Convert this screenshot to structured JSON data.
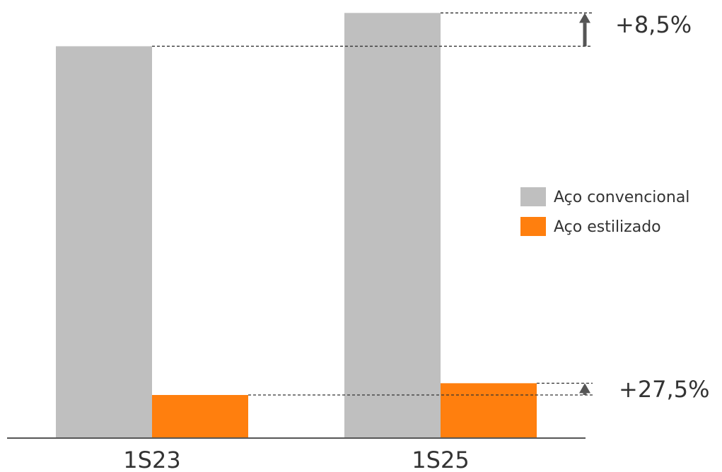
{
  "chart_data": {
    "type": "bar",
    "title": "",
    "xlabel": "",
    "ylabel": "",
    "categories": [
      "1S23",
      "1S25"
    ],
    "series": [
      {
        "name": "Aço convencional",
        "color": "#bfbfbf",
        "values": [
          100,
          108.5
        ]
      },
      {
        "name": "Aço estilizado",
        "color": "#ff7f0e",
        "values": [
          11.0,
          14.0
        ]
      }
    ],
    "ylim": [
      0,
      110
    ],
    "grid": false,
    "legend_placement": "right",
    "annotations": [
      {
        "series": "Aço convencional",
        "label": "+8,5%",
        "arrow": "up"
      },
      {
        "series": "Aço estilizado",
        "label": "+27,5%",
        "arrow": "up"
      }
    ],
    "axis_color": "#555555",
    "arrow_color": "#555555"
  }
}
